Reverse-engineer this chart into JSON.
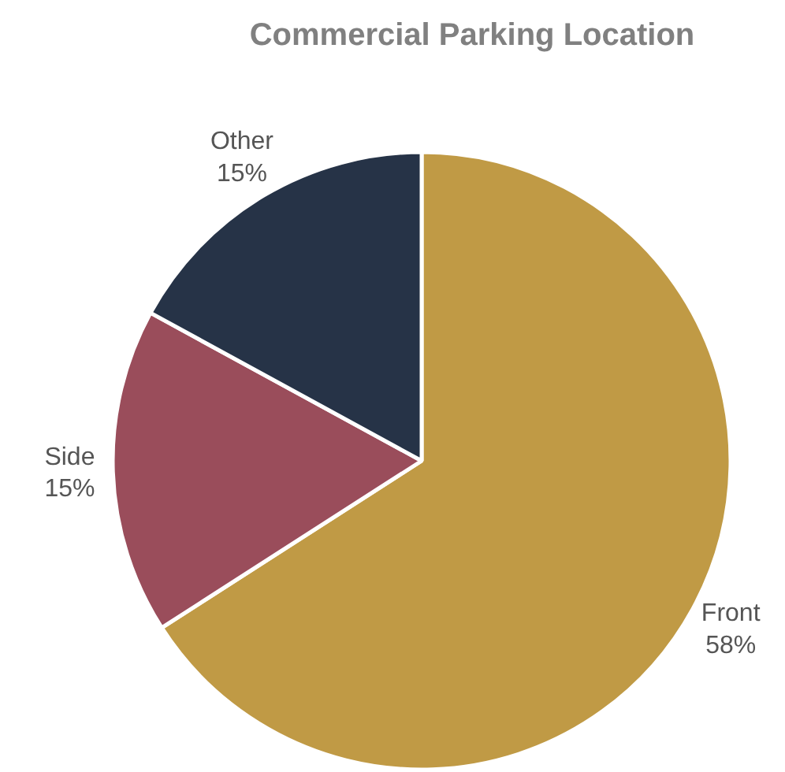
{
  "chart_data": {
    "type": "pie",
    "title": "Commercial Parking Location",
    "categories": [
      "Front",
      "Side",
      "Other"
    ],
    "values": [
      58,
      15,
      15
    ],
    "value_labels": [
      "58%",
      "15%",
      "15%"
    ],
    "colors": [
      "#c09a45",
      "#9a4d5b",
      "#263347"
    ],
    "legend": false
  }
}
